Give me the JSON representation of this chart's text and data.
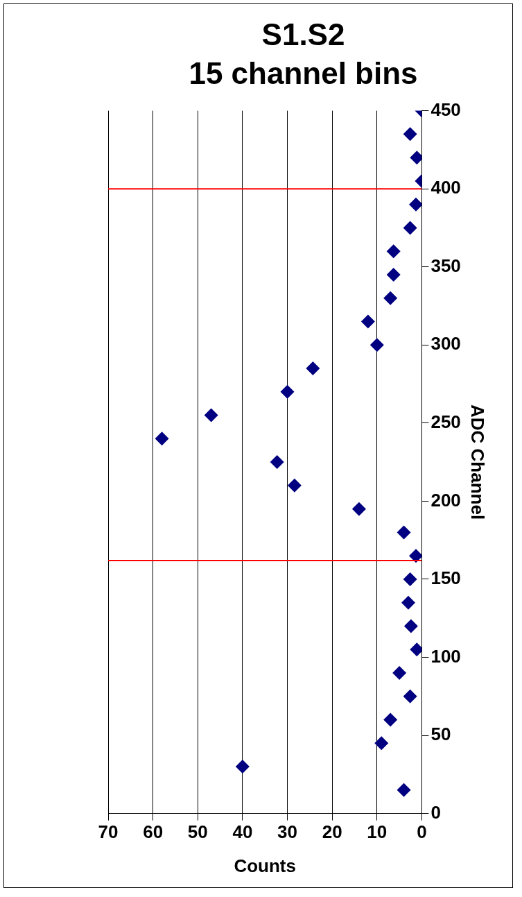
{
  "chart_data": {
    "type": "scatter",
    "title": "S1.S2",
    "subtitle": "15 channel bins",
    "xlabel": "Counts",
    "ylabel": "ADC Channel",
    "x": [
      4,
      40,
      9,
      7,
      2.6,
      5,
      1.1,
      2.4,
      3,
      2.6,
      1.3,
      4,
      14,
      28.4,
      32.3,
      58,
      47,
      30,
      24.3,
      10,
      12,
      7,
      6.3,
      6.3,
      2.6,
      1.3,
      0,
      1.1,
      2.6,
      0
    ],
    "series": [
      {
        "color": "#000080",
        "values": [
          15,
          30,
          45,
          60,
          75,
          90,
          105,
          120,
          135,
          150,
          165,
          180,
          195,
          210,
          225,
          240,
          255,
          270,
          285,
          300,
          315,
          330,
          345,
          360,
          375,
          390,
          405,
          420,
          435,
          450
        ]
      }
    ],
    "xlim": [
      70,
      0
    ],
    "xticks": [
      70,
      60,
      50,
      40,
      30,
      20,
      10,
      0
    ],
    "ylim": [
      0,
      450
    ],
    "yticks": [
      0,
      50,
      100,
      150,
      200,
      250,
      300,
      350,
      400,
      450
    ],
    "ref_lines": [
      {
        "axis": "y",
        "value": 162,
        "color": "#ff0000"
      },
      {
        "axis": "y",
        "value": 400,
        "color": "#ff0000"
      }
    ],
    "grid": "x",
    "legend": false,
    "marker": "diamond"
  }
}
